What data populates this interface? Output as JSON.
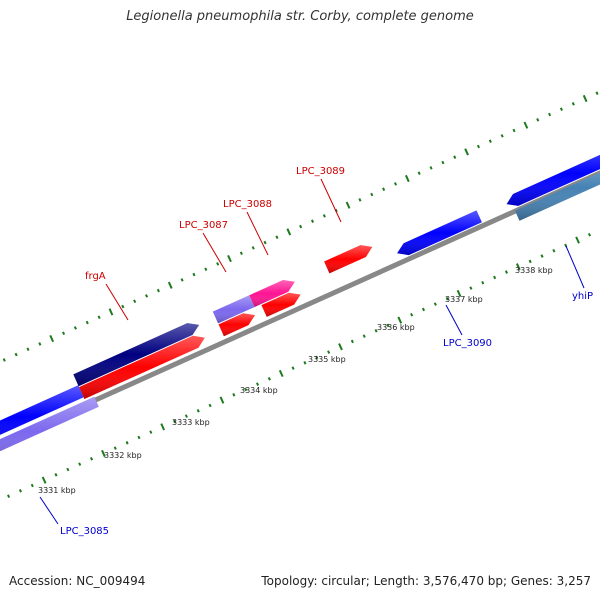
{
  "title": "Legionella pneumophila str. Corby, complete genome",
  "accession": "Accession: NC_009494",
  "topology": "Topology: circular; Length: 3,576,470 bp; Genes: 3,257",
  "colors": {
    "backbone": "#888888",
    "tick": "#1e7a1e",
    "forward_label": "#cc0000",
    "reverse_label": "#0000cc",
    "forward_gene": "#ff0000",
    "reverse_gene": "#0000ff",
    "dark_gene": "#000080",
    "purple_gene": "#7b68ee",
    "pink_gene": "#ff1493",
    "steel_gene": "#4682b4"
  },
  "scale_labels": [
    "3331 kbp",
    "3332 kbp",
    "3333 kbp",
    "3334 kbp",
    "3335 kbp",
    "3336 kbp",
    "3337 kbp",
    "3338 kbp"
  ],
  "gene_labels": [
    {
      "text": "frgA",
      "strand": "forward"
    },
    {
      "text": "LPC_3087",
      "strand": "forward"
    },
    {
      "text": "LPC_3088",
      "strand": "forward"
    },
    {
      "text": "LPC_3089",
      "strand": "forward"
    },
    {
      "text": "LPC_3090",
      "strand": "reverse"
    },
    {
      "text": "yhiP",
      "strand": "reverse"
    },
    {
      "text": "LPC_3085",
      "strand": "reverse"
    }
  ]
}
